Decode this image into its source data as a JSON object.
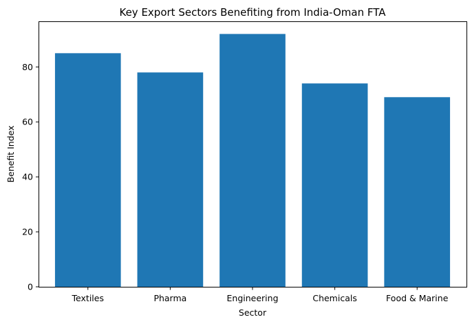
{
  "chart_data": {
    "type": "bar",
    "title": "Key Export Sectors Benefiting from India-Oman FTA",
    "xlabel": "Sector",
    "ylabel": "Benefit Index",
    "categories": [
      "Textiles",
      "Pharma",
      "Engineering",
      "Chemicals",
      "Food & Marine"
    ],
    "values": [
      85,
      78,
      92,
      74,
      69
    ],
    "ylim": [
      0,
      96.6
    ],
    "yticks": [
      0,
      20,
      40,
      60,
      80
    ],
    "grid": false,
    "legend": "none",
    "bar_color": "#1f77b4"
  }
}
